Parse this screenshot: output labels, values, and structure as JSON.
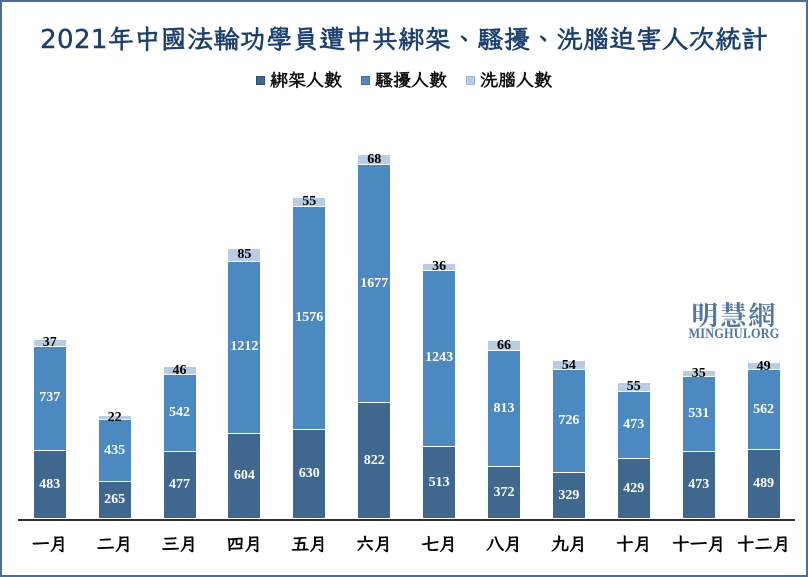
{
  "title": {
    "text": "2021年中國法輪功學員遭中共綁架、騷擾、洗腦迫害人次統計",
    "color": "#1b3f6e"
  },
  "watermark": {
    "cjk": "明慧網",
    "latin": "MINGHUI.ORG",
    "color": "#54779f"
  },
  "frame": {
    "border_color": "#4a6e9a",
    "background": "#ffffff"
  },
  "chart_data": {
    "type": "bar",
    "stacked": true,
    "title": "2021年中國法輪功學員遭中共綁架、騷擾、洗腦迫害人次統計",
    "categories": [
      "一月",
      "二月",
      "三月",
      "四月",
      "五月",
      "六月",
      "七月",
      "八月",
      "九月",
      "十月",
      "十一月",
      "十二月"
    ],
    "series": [
      {
        "name": "綁架人數",
        "color": "#40688e",
        "swatch_border": "#2f4f74",
        "label_color": "#ffffff",
        "values": [
          483,
          265,
          477,
          604,
          630,
          822,
          513,
          372,
          329,
          429,
          473,
          489
        ]
      },
      {
        "name": "騷擾人數",
        "color": "#4c89c1",
        "swatch_border": "#3d6fa3",
        "label_color": "#ffffff",
        "values": [
          737,
          435,
          542,
          1212,
          1576,
          1677,
          1243,
          813,
          726,
          473,
          531,
          562
        ]
      },
      {
        "name": "洗腦人數",
        "color": "#b7cde5",
        "swatch_border": "#9cb9d9",
        "label_color": "#000000",
        "values": [
          37,
          22,
          46,
          85,
          55,
          68,
          36,
          66,
          54,
          55,
          35,
          49
        ]
      }
    ],
    "totals": [
      1257,
      722,
      1065,
      1901,
      2261,
      2567,
      1792,
      1251,
      1109,
      957,
      1039,
      1100
    ],
    "xlabel": "",
    "ylabel": "",
    "ylim": [
      0,
      2800
    ],
    "grid": false,
    "legend_position": "top",
    "axis_color": "#303030",
    "value_labels": "center"
  }
}
